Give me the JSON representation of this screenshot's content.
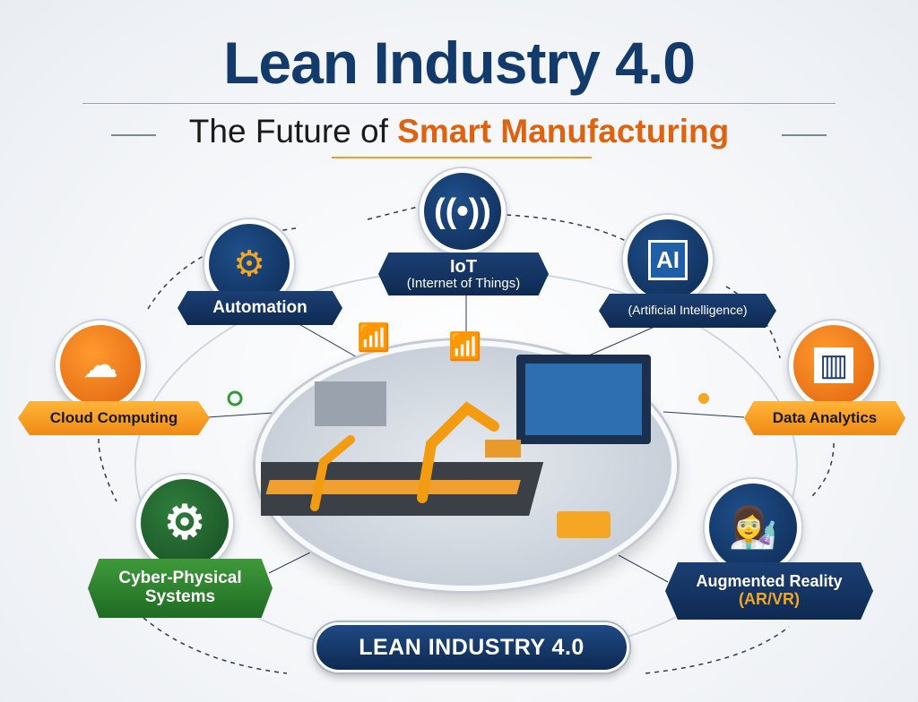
{
  "header": {
    "title": "Lean Industry 4.0",
    "subtitle_prefix": "The Future of ",
    "subtitle_highlight": "Smart Manufacturing"
  },
  "nodes": {
    "iot": {
      "line1": "IoT",
      "line2": "(Internet of Things)",
      "icon": "wifi-icon"
    },
    "automation": {
      "label": "Automation",
      "icon": "robot-arm-icon"
    },
    "ai": {
      "label": "(Artificial Intelligence)",
      "icon_text": "AI",
      "icon": "chip-icon"
    },
    "cloud": {
      "label": "Cloud Computing",
      "icon": "cloud-server-icon"
    },
    "analytics": {
      "label": "Data Analytics",
      "icon": "monitor-chart-icon"
    },
    "cps": {
      "line1": "Cyber-Physical",
      "line2": "Systems",
      "icon": "gears-icon"
    },
    "ar": {
      "line1": "Augmented Reality",
      "line2": "(AR/VR)",
      "icon": "vr-headset-person-icon"
    }
  },
  "center_badge": "LEAN INDUSTRY 4.0",
  "colors": {
    "navy": "#123a6b",
    "orange": "#e0620f",
    "amber": "#f5a623",
    "green": "#2f7d3c"
  }
}
